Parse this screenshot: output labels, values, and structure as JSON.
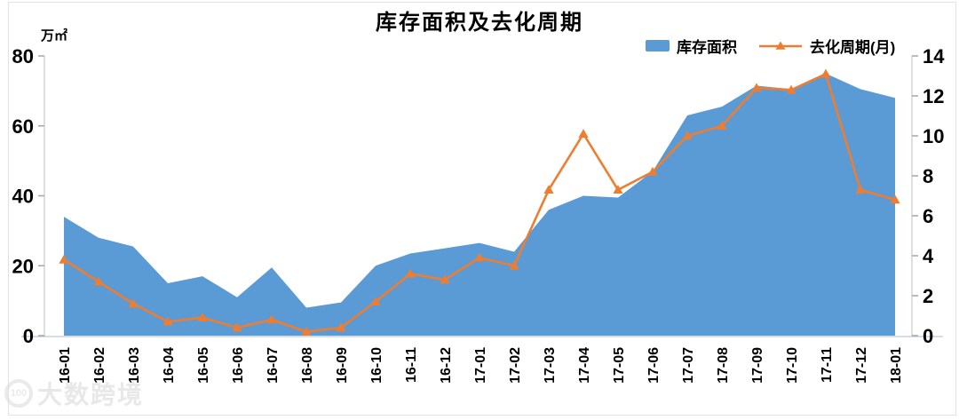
{
  "title": "库存面积及去化周期",
  "y_left_unit": "万㎡",
  "watermark": {
    "logo": "100",
    "text": "大数跨境"
  },
  "colors": {
    "area": "#5B9BD5",
    "line": "#ED7D31",
    "axis_line": "#BFBFBF",
    "tick": "#A6A6A6",
    "baseline": "#C9D2E0",
    "text": "#000000",
    "watermark": "#D8D8D8"
  },
  "chart_data": {
    "type": "combo",
    "title": "库存面积及去化周期",
    "categories": [
      "16-01",
      "16-02",
      "16-03",
      "16-04",
      "16-05",
      "16-06",
      "16-07",
      "16-08",
      "16-09",
      "16-10",
      "16-11",
      "16-12",
      "17-01",
      "17-02",
      "17-03",
      "17-04",
      "17-05",
      "17-06",
      "17-07",
      "17-08",
      "17-09",
      "17-10",
      "17-11",
      "17-12",
      "18-01"
    ],
    "series": [
      {
        "name": "库存面积",
        "type": "area",
        "axis": "left",
        "unit": "万㎡",
        "color": "#5B9BD5",
        "values": [
          34,
          28,
          25.5,
          15,
          17,
          11,
          19.5,
          8,
          9.5,
          20,
          23.5,
          25,
          26.5,
          24,
          36,
          40,
          39.5,
          47,
          63,
          65.5,
          71.5,
          70.5,
          75,
          70.5,
          68
        ]
      },
      {
        "name": "去化周期(月)",
        "type": "line",
        "axis": "right",
        "unit": "月",
        "color": "#ED7D31",
        "marker": "triangle",
        "values": [
          3.8,
          2.7,
          1.6,
          0.7,
          0.9,
          0.4,
          0.8,
          0.2,
          0.4,
          1.7,
          3.1,
          2.8,
          3.9,
          3.5,
          7.3,
          10.1,
          7.3,
          8.2,
          10.0,
          10.5,
          12.4,
          12.3,
          13.1,
          7.3,
          6.8
        ]
      }
    ],
    "y_left": {
      "label": "万㎡",
      "min": 0,
      "max": 80,
      "ticks": [
        0,
        20,
        40,
        60,
        80
      ]
    },
    "y_right": {
      "label": "月",
      "min": 0,
      "max": 14,
      "ticks": [
        0,
        2,
        4,
        6,
        8,
        10,
        12,
        14
      ]
    },
    "x_tick_rotation": 90,
    "legend_position": "top-right",
    "grid": false
  }
}
